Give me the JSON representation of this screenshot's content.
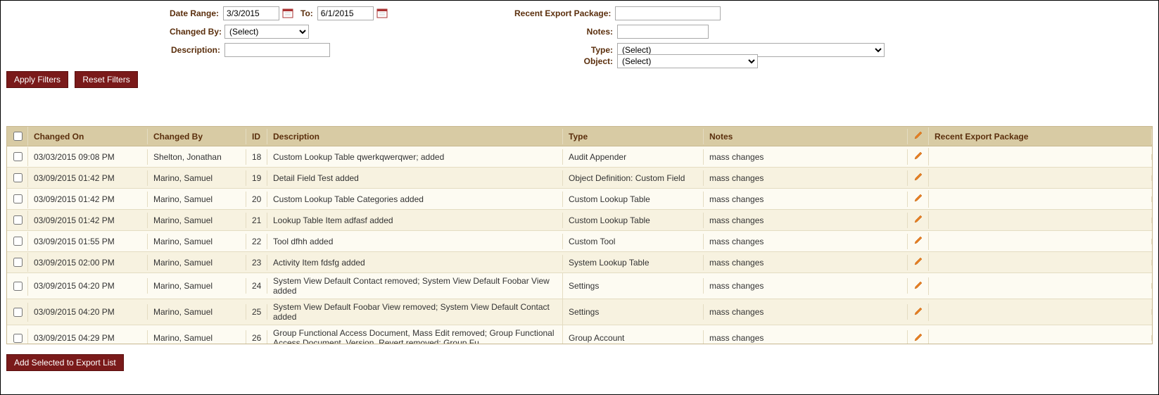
{
  "filters": {
    "dateRange": {
      "label": "Date Range:",
      "from": "3/3/2015",
      "toLabel": "To:",
      "to": "6/1/2015"
    },
    "changedBy": {
      "label": "Changed By:",
      "value": "(Select)"
    },
    "description": {
      "label": "Description:",
      "value": ""
    },
    "recentExport": {
      "label": "Recent Export Package:",
      "value": ""
    },
    "notes": {
      "label": "Notes:",
      "value": ""
    },
    "type": {
      "label": "Type:",
      "value": "(Select)"
    },
    "object": {
      "label": "Object:",
      "value": "(Select)"
    },
    "applyBtn": "Apply Filters",
    "resetBtn": "Reset Filters"
  },
  "table": {
    "headers": {
      "changedOn": "Changed On",
      "changedBy": "Changed By",
      "id": "ID",
      "description": "Description",
      "type": "Type",
      "notes": "Notes",
      "recentExport": "Recent Export Package"
    },
    "rows": [
      {
        "changedOn": "03/03/2015 09:08 PM",
        "changedBy": "Shelton, Jonathan",
        "id": "18",
        "description": "Custom Lookup Table qwerkqwerqwer; added",
        "type": "Audit Appender",
        "notes": "mass changes",
        "recentExport": ""
      },
      {
        "changedOn": "03/09/2015 01:42 PM",
        "changedBy": "Marino, Samuel",
        "id": "19",
        "description": "Detail Field Test added",
        "type": "Object Definition: Custom Field",
        "notes": "mass changes",
        "recentExport": ""
      },
      {
        "changedOn": "03/09/2015 01:42 PM",
        "changedBy": "Marino, Samuel",
        "id": "20",
        "description": "Custom Lookup Table Categories added",
        "type": "Custom Lookup Table",
        "notes": "mass changes",
        "recentExport": ""
      },
      {
        "changedOn": "03/09/2015 01:42 PM",
        "changedBy": "Marino, Samuel",
        "id": "21",
        "description": "Lookup Table Item adfasf added",
        "type": "Custom Lookup Table",
        "notes": "mass changes",
        "recentExport": ""
      },
      {
        "changedOn": "03/09/2015 01:55 PM",
        "changedBy": "Marino, Samuel",
        "id": "22",
        "description": "Tool dfhh added",
        "type": "Custom Tool",
        "notes": "mass changes",
        "recentExport": ""
      },
      {
        "changedOn": "03/09/2015 02:00 PM",
        "changedBy": "Marino, Samuel",
        "id": "23",
        "description": "Activity Item fdsfg added",
        "type": "System Lookup Table",
        "notes": "mass changes",
        "recentExport": ""
      },
      {
        "changedOn": "03/09/2015 04:20 PM",
        "changedBy": "Marino, Samuel",
        "id": "24",
        "description": "System View Default Contact removed; System View Default Foobar View added",
        "type": "Settings",
        "notes": "mass changes",
        "recentExport": ""
      },
      {
        "changedOn": "03/09/2015 04:20 PM",
        "changedBy": "Marino, Samuel",
        "id": "25",
        "description": "System View Default Foobar View removed; System View Default Contact added",
        "type": "Settings",
        "notes": "mass changes",
        "recentExport": ""
      },
      {
        "changedOn": "03/09/2015 04:29 PM",
        "changedBy": "Marino, Samuel",
        "id": "26",
        "description": "Group Functional Access Document, Mass Edit removed; Group Functional Access Document, Version, Revert removed; Group Fu",
        "type": "Group Account",
        "notes": "mass changes",
        "recentExport": ""
      }
    ]
  },
  "footer": {
    "addSelectedBtn": "Add Selected to Export List"
  },
  "colors": {
    "headerBg": "#d8cba4",
    "headerText": "#5a2e0c",
    "rowAlt": "#f7f2e0",
    "rowBase": "#fdfbf2",
    "btnBg": "#7a1a1a",
    "pencil": "#e67e22"
  }
}
